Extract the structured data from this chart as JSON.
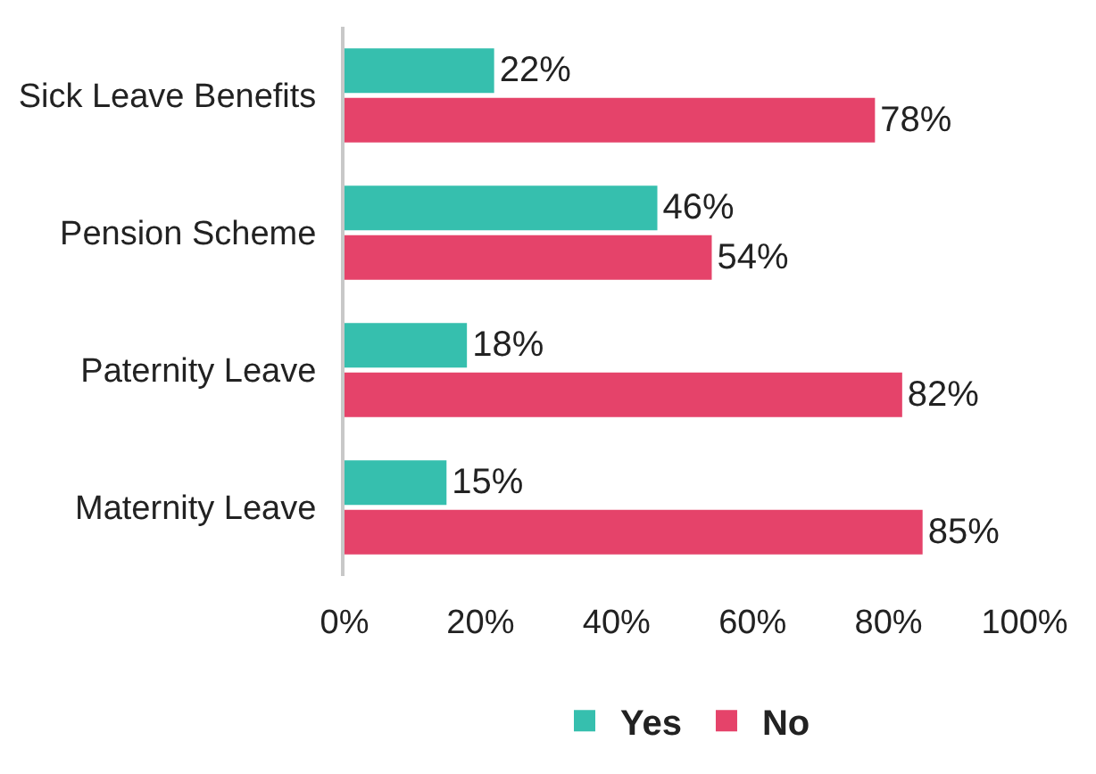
{
  "chart_data": {
    "type": "bar",
    "orientation": "horizontal",
    "categories": [
      "Sick Leave Benefits",
      "Pension Scheme",
      "Paternity Leave",
      "Maternity Leave"
    ],
    "series": [
      {
        "name": "Yes",
        "color": "#36bfae",
        "values": [
          22,
          46,
          18,
          15
        ],
        "value_labels": [
          "22%",
          "46%",
          "18%",
          "15%"
        ]
      },
      {
        "name": "No",
        "color": "#e5436a",
        "values": [
          78,
          54,
          82,
          85
        ],
        "value_labels": [
          "78%",
          "54%",
          "82%",
          "85%"
        ]
      }
    ],
    "xlim": [
      0,
      100
    ],
    "xticks": [
      {
        "value": 0,
        "label": "0%"
      },
      {
        "value": 20,
        "label": "20%"
      },
      {
        "value": 40,
        "label": "40%"
      },
      {
        "value": 60,
        "label": "60%"
      },
      {
        "value": 80,
        "label": "80%"
      },
      {
        "value": 100,
        "label": "100%"
      }
    ],
    "grid": false,
    "legend": "bottom"
  }
}
